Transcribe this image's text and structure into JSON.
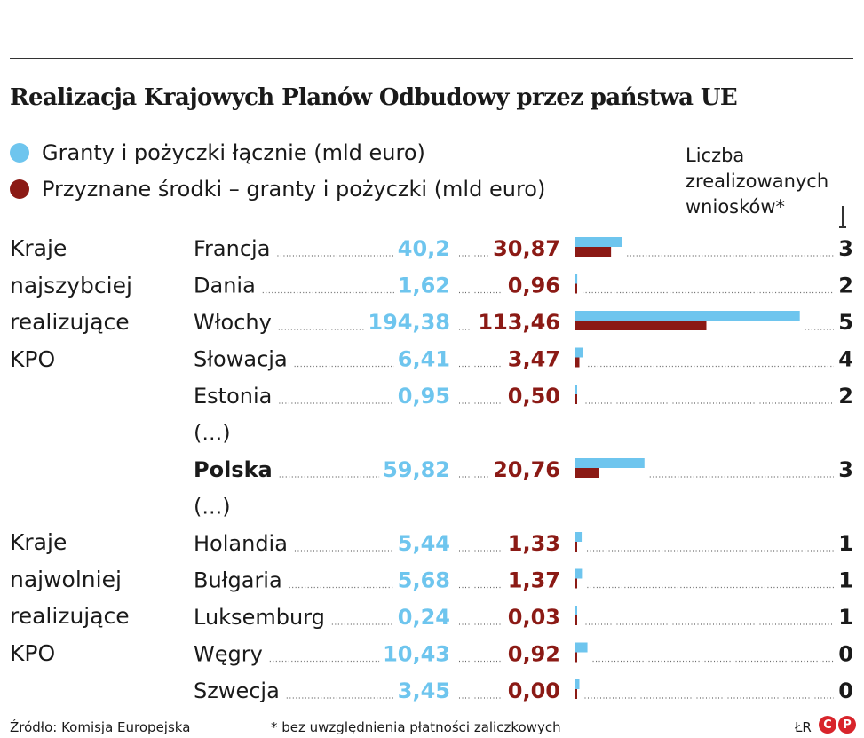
{
  "title": "Realizacja Krajowych Planów Odbudowy przez państwa UE",
  "legend": [
    {
      "label": "Granty i pożyczki łącznie (mld euro)",
      "color": "#6ec5ee"
    },
    {
      "label": "Przyznane środki – granty i pożyczki (mld euro)",
      "color": "#8b1a15"
    }
  ],
  "count_header": [
    "Liczba",
    "zrealizowanych",
    "wniosków*"
  ],
  "groups": [
    {
      "lines": [
        "Kraje",
        "najszybciej",
        "realizujące",
        "KPO"
      ]
    },
    {
      "lines": [
        "Kraje",
        "najwolniej",
        "realizujące",
        "KPO"
      ]
    }
  ],
  "colors": {
    "total": "#6ec5ee",
    "granted": "#8b1a15",
    "text": "#1a1a1a"
  },
  "chart_data": {
    "type": "bar",
    "orientation": "horizontal",
    "categories": [
      "Francja",
      "Dania",
      "Włochy",
      "Słowacja",
      "Estonia",
      "(...)",
      "Polska",
      "(...)",
      "Holandia",
      "Bułgaria",
      "Luksemburg",
      "Węgry",
      "Szwecja"
    ],
    "series": [
      {
        "name": "Granty i pożyczki łącznie (mld euro)",
        "labels": [
          "40,2",
          "1,62",
          "194,38",
          "6,41",
          "0,95",
          "",
          "59,82",
          "",
          "5,44",
          "5,68",
          "0,24",
          "10,43",
          "3,45"
        ],
        "values": [
          40.2,
          1.62,
          194.38,
          6.41,
          0.95,
          null,
          59.82,
          null,
          5.44,
          5.68,
          0.24,
          10.43,
          3.45
        ]
      },
      {
        "name": "Przyznane środki – granty i pożyczki (mld euro)",
        "labels": [
          "30,87",
          "0,96",
          "113,46",
          "3,47",
          "0,50",
          "",
          "20,76",
          "",
          "1,33",
          "1,37",
          "0,03",
          "0,92",
          "0,00"
        ],
        "values": [
          30.87,
          0.96,
          113.46,
          3.47,
          0.5,
          null,
          20.76,
          null,
          1.33,
          1.37,
          0.03,
          0.92,
          0.0
        ]
      }
    ],
    "counts": [
      "3",
      "2",
      "5",
      "4",
      "2",
      "",
      "3",
      "",
      "1",
      "1",
      "1",
      "0",
      "0"
    ],
    "highlight": [
      "Polska"
    ],
    "xlim": [
      0,
      200
    ],
    "grid": false,
    "legend_position": "top-left"
  },
  "footer": {
    "source": "Źródło: Komisja Europejska",
    "note": "* bez uwzględnienia płatności zaliczkowych",
    "author": "ŁR",
    "logo_letters": [
      "C",
      "P"
    ]
  }
}
